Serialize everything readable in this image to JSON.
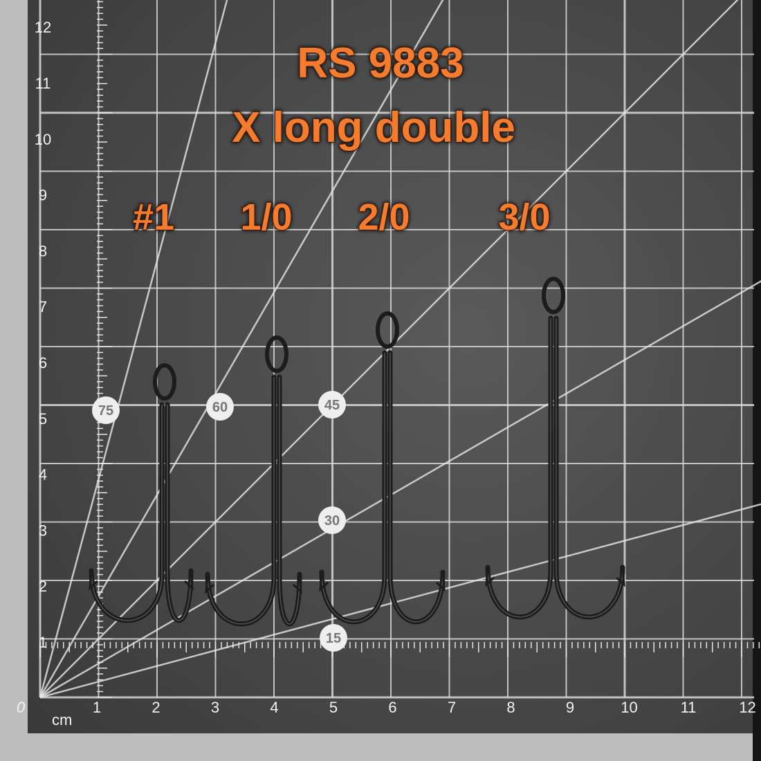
{
  "title": "RS 9883",
  "subtitle": "X long double",
  "sizes": [
    "#1",
    "1/0",
    "2/0",
    "3/0"
  ],
  "ruler": {
    "unit": "cm",
    "bottom": [
      "0",
      "1",
      "2",
      "3",
      "4",
      "5",
      "6",
      "7",
      "8",
      "9",
      "10",
      "11",
      "12"
    ],
    "left": [
      "1",
      "2",
      "3",
      "4",
      "5",
      "6",
      "7",
      "8",
      "9",
      "10",
      "11",
      "12"
    ]
  },
  "angles": [
    "75",
    "60",
    "45",
    "30",
    "15"
  ]
}
